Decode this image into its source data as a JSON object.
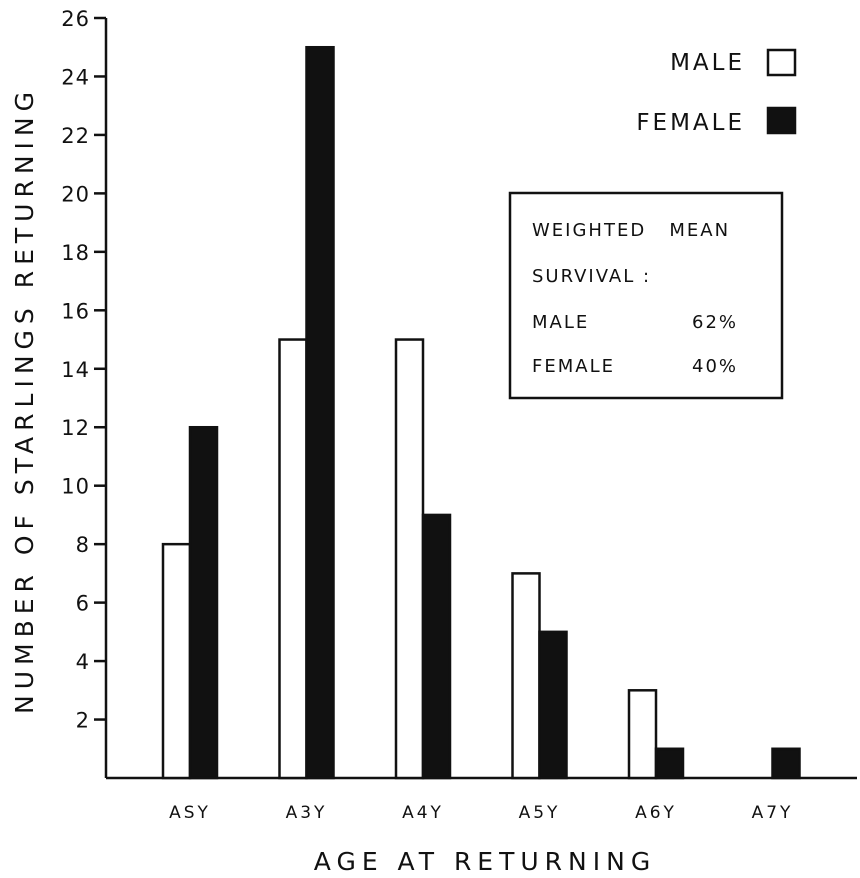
{
  "chart_data": {
    "type": "bar",
    "title": "",
    "xlabel": "AGE AT RETURNING",
    "ylabel": "NUMBER OF STARLINGS RETURNING",
    "categories": [
      "ASY",
      "A3Y",
      "A4Y",
      "A5Y",
      "A6Y",
      "A7Y"
    ],
    "series": [
      {
        "name": "MALE",
        "values": [
          8,
          15,
          15,
          7,
          3,
          0
        ],
        "color": "#ffffff"
      },
      {
        "name": "FEMALE",
        "values": [
          12,
          25,
          9,
          5,
          1,
          1
        ],
        "color": "#111111"
      }
    ],
    "ylim": [
      0,
      26
    ],
    "yticks": [
      2,
      4,
      6,
      8,
      10,
      12,
      14,
      16,
      18,
      20,
      22,
      24,
      26
    ],
    "grid": false,
    "legend_position": "top-right",
    "annotation": {
      "line1": "WEIGHTED   MEAN",
      "line2": "SURVIVAL :",
      "rows": [
        {
          "label": "MALE",
          "value": "62%"
        },
        {
          "label": "FEMALE",
          "value": "40%"
        }
      ]
    }
  }
}
